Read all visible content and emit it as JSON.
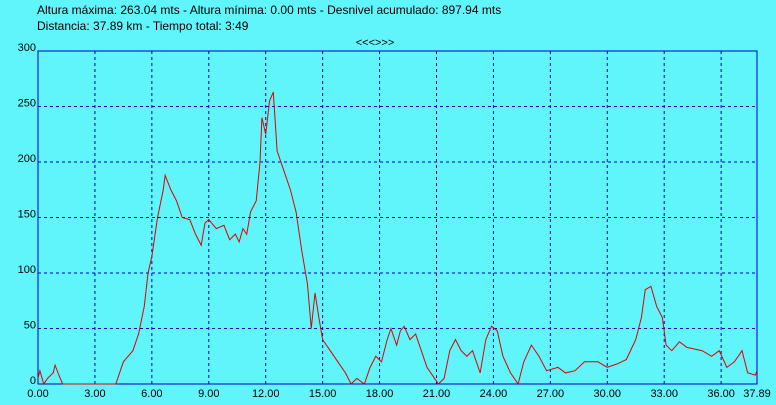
{
  "header": {
    "line1": "Altura máxima: 263.04 mts - Altura mínima: 0.00 mts - Desnivel acumulado: 897.94 mts",
    "line2": "Distancia: 37.89 km - Tiempo total: 3:49",
    "nav": "<<<>>>"
  },
  "chart_data": {
    "type": "line",
    "color": "#e00000",
    "grid": true,
    "x": [
      0,
      0.1,
      0.3,
      0.5,
      0.8,
      0.9,
      1.1,
      1.3,
      4.1,
      4.5,
      5.0,
      5.3,
      5.6,
      5.8,
      6.0,
      6.3,
      6.6,
      6.7,
      7.0,
      7.3,
      7.6,
      8.0,
      8.3,
      8.6,
      8.8,
      9.0,
      9.4,
      9.8,
      10.1,
      10.4,
      10.6,
      10.8,
      11.0,
      11.2,
      11.5,
      11.7,
      11.8,
      12.0,
      12.2,
      12.4,
      12.6,
      12.9,
      13.3,
      13.6,
      13.9,
      14.2,
      14.4,
      14.6,
      14.8,
      15.0,
      15.4,
      15.8,
      16.2,
      16.5,
      16.8,
      17.2,
      17.5,
      17.8,
      18.1,
      18.4,
      18.6,
      18.9,
      19.1,
      19.3,
      19.6,
      19.9,
      20.2,
      20.5,
      20.9,
      21.1,
      21.4,
      21.7,
      22.0,
      22.3,
      22.6,
      22.9,
      23.1,
      23.3,
      23.6,
      23.9,
      24.2,
      24.5,
      24.9,
      25.3,
      25.6,
      26.0,
      26.4,
      26.8,
      27.4,
      27.8,
      28.3,
      28.8,
      29.5,
      30.0,
      30.5,
      31.0,
      31.5,
      31.8,
      32.0,
      32.3,
      32.6,
      32.9,
      33.1,
      33.4,
      33.8,
      34.2,
      35.0,
      35.5,
      35.9,
      36.3,
      36.7,
      37.1,
      37.4,
      37.8,
      37.89
    ],
    "values": [
      5,
      12,
      0,
      5,
      10,
      17,
      8,
      0,
      0,
      20,
      30,
      45,
      70,
      100,
      115,
      150,
      175,
      188,
      175,
      165,
      150,
      148,
      135,
      125,
      145,
      148,
      140,
      143,
      130,
      135,
      128,
      140,
      135,
      155,
      165,
      200,
      240,
      225,
      255,
      263,
      210,
      195,
      175,
      155,
      120,
      90,
      50,
      82,
      60,
      40,
      30,
      20,
      10,
      0,
      5,
      0,
      15,
      25,
      20,
      40,
      50,
      35,
      48,
      52,
      40,
      45,
      30,
      15,
      5,
      0,
      5,
      30,
      40,
      30,
      25,
      30,
      20,
      10,
      40,
      52,
      48,
      25,
      10,
      0,
      20,
      35,
      25,
      12,
      15,
      10,
      12,
      20,
      20,
      15,
      18,
      22,
      40,
      60,
      85,
      88,
      70,
      60,
      35,
      30,
      38,
      33,
      30,
      25,
      30,
      15,
      20,
      30,
      10,
      8,
      12
    ],
    "xlim": [
      0,
      37.89
    ],
    "xticks": [
      {
        "value": 0,
        "label": "0.00"
      },
      {
        "value": 3,
        "label": "3.00"
      },
      {
        "value": 6,
        "label": "6.00"
      },
      {
        "value": 9,
        "label": "9.00"
      },
      {
        "value": 12,
        "label": "12.00"
      },
      {
        "value": 15,
        "label": "15.00"
      },
      {
        "value": 18,
        "label": "18.00"
      },
      {
        "value": 21,
        "label": "21.00"
      },
      {
        "value": 24,
        "label": "24.00"
      },
      {
        "value": 27,
        "label": "27.00"
      },
      {
        "value": 30,
        "label": "30.00"
      },
      {
        "value": 33,
        "label": "33.00"
      },
      {
        "value": 36,
        "label": "36.00"
      },
      {
        "value": 37.89,
        "label": "37.89"
      }
    ],
    "ylim": [
      0,
      300
    ],
    "yticks": [
      0,
      50,
      100,
      150,
      200,
      250,
      300
    ]
  }
}
